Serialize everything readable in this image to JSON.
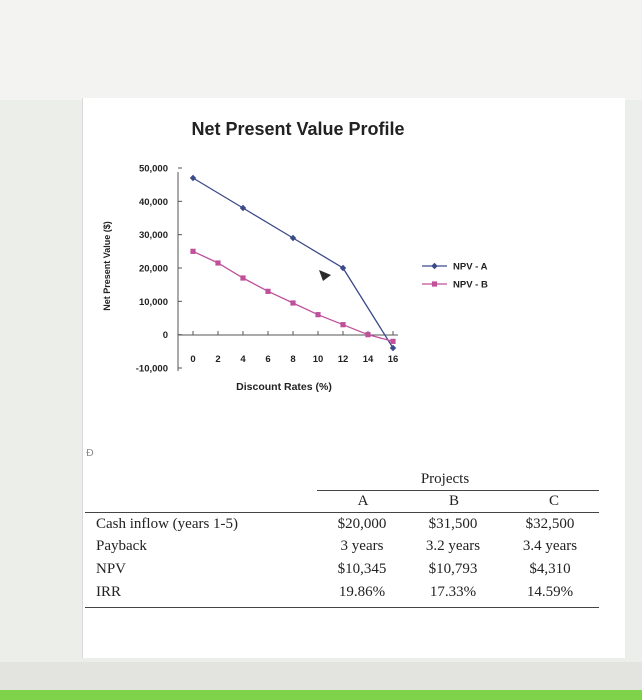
{
  "chart_data": {
    "type": "line",
    "title": "Net Present Value Profile",
    "xlabel": "Discount Rates (%)",
    "ylabel": "Net Present Value ($)",
    "x": [
      0,
      2,
      4,
      6,
      8,
      10,
      12,
      14,
      16
    ],
    "x_tick_labels": [
      "0",
      "2",
      "4",
      "6",
      "8",
      "10",
      "12",
      "14",
      "16"
    ],
    "y_ticks": [
      -10000,
      0,
      10000,
      20000,
      30000,
      40000,
      50000
    ],
    "y_tick_labels": [
      "-10,000",
      "0",
      "10,000",
      "20,000",
      "30,000",
      "40,000",
      "50,000"
    ],
    "ylim": [
      -10000,
      50000
    ],
    "xlim": [
      0,
      16
    ],
    "grid": false,
    "legend_position": "right",
    "series": [
      {
        "name": "NPV - A",
        "marker": "diamond",
        "color": "#3b4a8a",
        "x": [
          0,
          4,
          8,
          12,
          16
        ],
        "values": [
          47000,
          38000,
          29000,
          20000,
          -4000
        ]
      },
      {
        "name": "NPV - B",
        "marker": "square",
        "color": "#c0509b",
        "x": [
          0,
          2,
          4,
          6,
          8,
          10,
          12,
          14,
          16
        ],
        "values": [
          25000,
          21500,
          17000,
          13000,
          9500,
          6000,
          3000,
          0,
          -2000
        ]
      }
    ]
  },
  "table": {
    "group_header": "Projects",
    "columns": [
      "A",
      "B",
      "C"
    ],
    "rows": [
      {
        "label": "Cash inflow (years 1-5)",
        "values": [
          "$20,000",
          "$31,500",
          "$32,500"
        ]
      },
      {
        "label": "Payback",
        "values": [
          "3 years",
          "3.2 years",
          "3.4 years"
        ]
      },
      {
        "label": "NPV",
        "values": [
          "$10,345",
          "$10,793",
          "$4,310"
        ]
      },
      {
        "label": "IRR",
        "values": [
          "19.86%",
          "17.33%",
          "14.59%"
        ]
      }
    ]
  },
  "page_mark": "Ð"
}
